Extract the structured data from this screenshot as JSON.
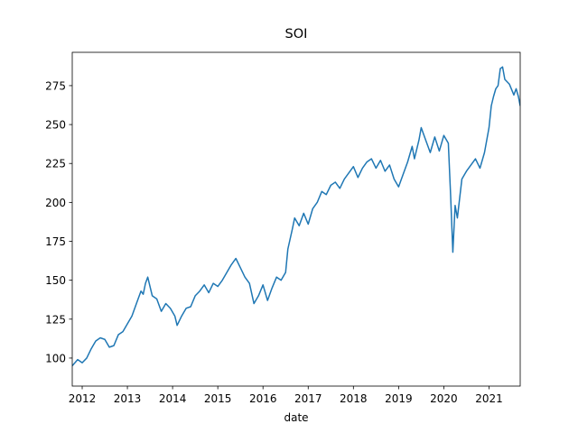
{
  "chart_data": {
    "type": "line",
    "title": "SOI",
    "x_label": "date",
    "color": "#1f77b4",
    "x": [
      2011.78,
      2011.9,
      2012.0,
      2012.1,
      2012.2,
      2012.3,
      2012.4,
      2012.5,
      2012.6,
      2012.7,
      2012.8,
      2012.9,
      2013.0,
      2013.1,
      2013.2,
      2013.3,
      2013.35,
      2013.4,
      2013.45,
      2013.55,
      2013.65,
      2013.75,
      2013.85,
      2013.95,
      2014.05,
      2014.1,
      2014.2,
      2014.3,
      2014.4,
      2014.5,
      2014.6,
      2014.7,
      2014.8,
      2014.9,
      2015.0,
      2015.1,
      2015.2,
      2015.3,
      2015.4,
      2015.5,
      2015.6,
      2015.7,
      2015.8,
      2015.9,
      2016.0,
      2016.1,
      2016.2,
      2016.3,
      2016.4,
      2016.5,
      2016.55,
      2016.65,
      2016.7,
      2016.8,
      2016.9,
      2017.0,
      2017.1,
      2017.2,
      2017.3,
      2017.4,
      2017.5,
      2017.6,
      2017.7,
      2017.8,
      2017.9,
      2018.0,
      2018.1,
      2018.2,
      2018.3,
      2018.4,
      2018.5,
      2018.6,
      2018.7,
      2018.8,
      2018.9,
      2019.0,
      2019.1,
      2019.2,
      2019.3,
      2019.35,
      2019.45,
      2019.5,
      2019.6,
      2019.7,
      2019.8,
      2019.9,
      2020.0,
      2020.1,
      2020.15,
      2020.2,
      2020.25,
      2020.3,
      2020.4,
      2020.5,
      2020.6,
      2020.7,
      2020.8,
      2020.9,
      2021.0,
      2021.05,
      2021.1,
      2021.15,
      2021.2,
      2021.25,
      2021.3,
      2021.35,
      2021.45,
      2021.55,
      2021.6,
      2021.65,
      2021.69
    ],
    "values": [
      95,
      99,
      97,
      100,
      106,
      111,
      113,
      112,
      107,
      108,
      115,
      117,
      122,
      127,
      135,
      143,
      141,
      148,
      152,
      140,
      138,
      130,
      135,
      132,
      127,
      121,
      127,
      132,
      133,
      140,
      143,
      147,
      142,
      148,
      146,
      150,
      155,
      160,
      164,
      158,
      152,
      148,
      135,
      140,
      147,
      137,
      145,
      152,
      150,
      155,
      170,
      183,
      190,
      185,
      193,
      186,
      196,
      200,
      207,
      205,
      211,
      213,
      209,
      215,
      219,
      223,
      216,
      222,
      226,
      228,
      222,
      227,
      220,
      224,
      215,
      210,
      218,
      226,
      236,
      228,
      240,
      248,
      240,
      232,
      242,
      233,
      243,
      238,
      205,
      168,
      198,
      190,
      215,
      220,
      224,
      228,
      222,
      232,
      248,
      262,
      268,
      273,
      275,
      286,
      287,
      279,
      276,
      269,
      273,
      268,
      262
    ],
    "xlim": [
      2011.78,
      2021.69
    ],
    "xticks": [
      2012,
      2013,
      2014,
      2015,
      2016,
      2017,
      2018,
      2019,
      2020,
      2021
    ],
    "ylim": [
      82,
      296.4
    ],
    "yticks": [
      100,
      125,
      150,
      175,
      200,
      225,
      250,
      275
    ],
    "grid": false
  }
}
